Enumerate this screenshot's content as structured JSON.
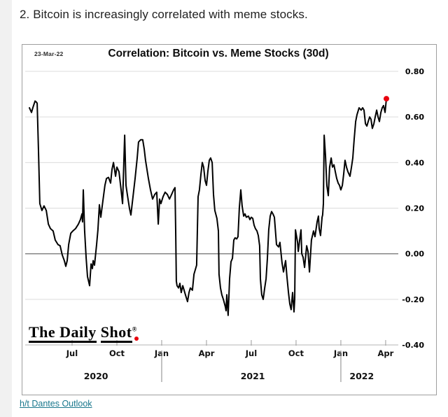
{
  "page": {
    "heading": "2. Bitcoin is increasingly correlated with meme stocks.",
    "credit_link": "h/t Dantes Outlook"
  },
  "chart": {
    "date_stamp": "23-Mar-22",
    "title": "Correlation: Bitcoin vs. Meme Stocks (30d)",
    "logo_text_1": "The Daily",
    "logo_text_2": "Shot",
    "logo_registered": "®",
    "colors": {
      "line": "#000000",
      "endpoint_dot": "#e8000d",
      "grid": "#dcdcdc",
      "zero_line": "#7d7d7d",
      "axis_line": "#b5b5b5",
      "border": "#9e9e9e",
      "link": "#19778c",
      "gutter": "#f1f1f1"
    }
  },
  "chart_data": {
    "type": "line",
    "title": "Correlation: Bitcoin vs. Meme Stocks (30d)",
    "as_of": "23-Mar-22",
    "grid": true,
    "x_unit": "fractional months since 2020-04-01 (m=3 is Jul 2020, m=24 is Apr 2022)",
    "xlim": [
      0,
      24.45
    ],
    "ylim": [
      -0.44,
      0.845
    ],
    "y_ticks": [
      {
        "v": 0.8,
        "label": "0.80"
      },
      {
        "v": 0.6,
        "label": "0.60"
      },
      {
        "v": 0.4,
        "label": "0.40"
      },
      {
        "v": 0.2,
        "label": "0.20"
      },
      {
        "v": 0.0,
        "label": "0.00"
      },
      {
        "v": -0.2,
        "label": "-0.20"
      },
      {
        "v": -0.4,
        "label": "-0.40"
      }
    ],
    "x_ticks": [
      {
        "m": 3,
        "label": "Jul"
      },
      {
        "m": 6,
        "label": "Oct"
      },
      {
        "m": 9,
        "label": "Jan"
      },
      {
        "m": 12,
        "label": "Apr"
      },
      {
        "m": 15,
        "label": "Jul"
      },
      {
        "m": 18,
        "label": "Oct"
      },
      {
        "m": 21,
        "label": "Jan"
      },
      {
        "m": 24,
        "label": "Apr"
      }
    ],
    "year_labels": [
      {
        "m": 4.6,
        "label": "2020"
      },
      {
        "m": 15.1,
        "label": "2021"
      },
      {
        "m": 22.4,
        "label": "2022"
      }
    ],
    "year_separators": [
      9,
      21
    ],
    "last_point_marker": {
      "m": 24.05,
      "v": 0.68,
      "color": "#e8000d"
    },
    "series": [
      {
        "name": "30-day correlation: Bitcoin vs. meme stocks",
        "color": "#000000",
        "points": [
          [
            0.14,
            0.64
          ],
          [
            0.28,
            0.62
          ],
          [
            0.37,
            0.64
          ],
          [
            0.52,
            0.67
          ],
          [
            0.61,
            0.665
          ],
          [
            0.66,
            0.66
          ],
          [
            0.75,
            0.45
          ],
          [
            0.84,
            0.22
          ],
          [
            0.98,
            0.19
          ],
          [
            1.12,
            0.21
          ],
          [
            1.27,
            0.19
          ],
          [
            1.41,
            0.13
          ],
          [
            1.55,
            0.11
          ],
          [
            1.73,
            0.1
          ],
          [
            1.87,
            0.06
          ],
          [
            2.06,
            0.04
          ],
          [
            2.2,
            0.035
          ],
          [
            2.34,
            -0.005
          ],
          [
            2.48,
            -0.03
          ],
          [
            2.58,
            -0.055
          ],
          [
            2.67,
            -0.03
          ],
          [
            2.77,
            0.04
          ],
          [
            2.91,
            0.09
          ],
          [
            3.05,
            0.1
          ],
          [
            3.23,
            0.11
          ],
          [
            3.42,
            0.13
          ],
          [
            3.56,
            0.15
          ],
          [
            3.66,
            0.175
          ],
          [
            3.7,
            0.14
          ],
          [
            3.75,
            0.28
          ],
          [
            3.84,
            0.1
          ],
          [
            3.94,
            -0.02
          ],
          [
            4.03,
            -0.1
          ],
          [
            4.17,
            -0.14
          ],
          [
            4.27,
            -0.045
          ],
          [
            4.36,
            -0.065
          ],
          [
            4.41,
            -0.03
          ],
          [
            4.5,
            -0.05
          ],
          [
            4.64,
            0.04
          ],
          [
            4.73,
            0.105
          ],
          [
            4.83,
            0.215
          ],
          [
            4.92,
            0.16
          ],
          [
            5.06,
            0.23
          ],
          [
            5.2,
            0.3
          ],
          [
            5.3,
            0.33
          ],
          [
            5.44,
            0.335
          ],
          [
            5.58,
            0.31
          ],
          [
            5.67,
            0.37
          ],
          [
            5.77,
            0.4
          ],
          [
            5.91,
            0.34
          ],
          [
            6.0,
            0.38
          ],
          [
            6.14,
            0.36
          ],
          [
            6.28,
            0.28
          ],
          [
            6.38,
            0.22
          ],
          [
            6.52,
            0.52
          ],
          [
            6.61,
            0.3
          ],
          [
            6.7,
            0.26
          ],
          [
            6.84,
            0.2
          ],
          [
            6.94,
            0.17
          ],
          [
            7.08,
            0.25
          ],
          [
            7.22,
            0.33
          ],
          [
            7.36,
            0.42
          ],
          [
            7.45,
            0.49
          ],
          [
            7.59,
            0.5
          ],
          [
            7.73,
            0.5
          ],
          [
            7.83,
            0.46
          ],
          [
            7.92,
            0.41
          ],
          [
            8.11,
            0.33
          ],
          [
            8.25,
            0.28
          ],
          [
            8.39,
            0.24
          ],
          [
            8.53,
            0.26
          ],
          [
            8.67,
            0.27
          ],
          [
            8.77,
            0.13
          ],
          [
            8.86,
            0.24
          ],
          [
            8.95,
            0.22
          ],
          [
            9.09,
            0.25
          ],
          [
            9.23,
            0.27
          ],
          [
            9.38,
            0.26
          ],
          [
            9.52,
            0.24
          ],
          [
            9.66,
            0.26
          ],
          [
            9.8,
            0.28
          ],
          [
            9.89,
            0.29
          ],
          [
            9.94,
            0.1
          ],
          [
            9.98,
            -0.12
          ],
          [
            10.03,
            -0.14
          ],
          [
            10.13,
            -0.15
          ],
          [
            10.22,
            -0.13
          ],
          [
            10.31,
            -0.17
          ],
          [
            10.41,
            -0.14
          ],
          [
            10.5,
            -0.16
          ],
          [
            10.59,
            -0.18
          ],
          [
            10.73,
            -0.21
          ],
          [
            10.83,
            -0.17
          ],
          [
            10.92,
            -0.15
          ],
          [
            11.06,
            -0.16
          ],
          [
            11.16,
            -0.09
          ],
          [
            11.25,
            -0.07
          ],
          [
            11.34,
            -0.05
          ],
          [
            11.44,
            0.25
          ],
          [
            11.53,
            0.28
          ],
          [
            11.63,
            0.35
          ],
          [
            11.72,
            0.4
          ],
          [
            11.81,
            0.38
          ],
          [
            11.91,
            0.32
          ],
          [
            12.0,
            0.3
          ],
          [
            12.09,
            0.36
          ],
          [
            12.19,
            0.41
          ],
          [
            12.28,
            0.42
          ],
          [
            12.38,
            0.4
          ],
          [
            12.47,
            0.26
          ],
          [
            12.56,
            0.19
          ],
          [
            12.7,
            0.155
          ],
          [
            12.8,
            0.1
          ],
          [
            12.84,
            -0.09
          ],
          [
            12.94,
            -0.15
          ],
          [
            13.03,
            -0.18
          ],
          [
            13.13,
            -0.2
          ],
          [
            13.27,
            -0.235
          ],
          [
            13.31,
            -0.25
          ],
          [
            13.36,
            -0.18
          ],
          [
            13.45,
            -0.27
          ],
          [
            13.55,
            -0.11
          ],
          [
            13.64,
            -0.035
          ],
          [
            13.74,
            -0.02
          ],
          [
            13.83,
            0.06
          ],
          [
            13.92,
            0.07
          ],
          [
            14.02,
            0.065
          ],
          [
            14.11,
            0.075
          ],
          [
            14.2,
            0.2
          ],
          [
            14.3,
            0.28
          ],
          [
            14.39,
            0.21
          ],
          [
            14.49,
            0.165
          ],
          [
            14.58,
            0.175
          ],
          [
            14.67,
            0.16
          ],
          [
            14.81,
            0.165
          ],
          [
            14.91,
            0.15
          ],
          [
            15.0,
            0.16
          ],
          [
            15.1,
            0.155
          ],
          [
            15.19,
            0.125
          ],
          [
            15.28,
            0.11
          ],
          [
            15.38,
            0.1
          ],
          [
            15.47,
            0.08
          ],
          [
            15.56,
            0.035
          ],
          [
            15.61,
            -0.11
          ],
          [
            15.7,
            -0.18
          ],
          [
            15.8,
            -0.2
          ],
          [
            15.89,
            -0.155
          ],
          [
            15.99,
            -0.11
          ],
          [
            16.08,
            -0.02
          ],
          [
            16.17,
            0.105
          ],
          [
            16.27,
            0.165
          ],
          [
            16.36,
            0.185
          ],
          [
            16.45,
            0.175
          ],
          [
            16.55,
            0.16
          ],
          [
            16.69,
            0.04
          ],
          [
            16.83,
            0.03
          ],
          [
            16.92,
            0.05
          ],
          [
            17.06,
            -0.04
          ],
          [
            17.16,
            -0.08
          ],
          [
            17.3,
            -0.03
          ],
          [
            17.39,
            -0.1
          ],
          [
            17.49,
            -0.17
          ],
          [
            17.58,
            -0.22
          ],
          [
            17.67,
            -0.245
          ],
          [
            17.77,
            -0.17
          ],
          [
            17.86,
            -0.255
          ],
          [
            17.91,
            -0.2
          ],
          [
            17.96,
            0.105
          ],
          [
            18.1,
            0.05
          ],
          [
            18.15,
            0.01
          ],
          [
            18.24,
            0.06
          ],
          [
            18.33,
            0.105
          ],
          [
            18.38,
            0.0
          ],
          [
            18.47,
            -0.015
          ],
          [
            18.57,
            -0.06
          ],
          [
            18.71,
            0.035
          ],
          [
            18.8,
            0.01
          ],
          [
            18.9,
            -0.08
          ],
          [
            19.03,
            0.06
          ],
          [
            19.17,
            0.1
          ],
          [
            19.27,
            0.075
          ],
          [
            19.41,
            0.14
          ],
          [
            19.5,
            0.165
          ],
          [
            19.55,
            0.11
          ],
          [
            19.64,
            0.08
          ],
          [
            19.74,
            0.16
          ],
          [
            19.78,
            0.17
          ],
          [
            19.83,
            0.22
          ],
          [
            19.88,
            0.52
          ],
          [
            19.97,
            0.43
          ],
          [
            20.06,
            0.3
          ],
          [
            20.16,
            0.255
          ],
          [
            20.25,
            0.38
          ],
          [
            20.35,
            0.42
          ],
          [
            20.44,
            0.38
          ],
          [
            20.54,
            0.39
          ],
          [
            20.63,
            0.36
          ],
          [
            20.72,
            0.33
          ],
          [
            20.82,
            0.31
          ],
          [
            20.91,
            0.3
          ],
          [
            21.0,
            0.28
          ],
          [
            21.1,
            0.3
          ],
          [
            21.19,
            0.35
          ],
          [
            21.28,
            0.41
          ],
          [
            21.38,
            0.38
          ],
          [
            21.47,
            0.36
          ],
          [
            21.61,
            0.34
          ],
          [
            21.71,
            0.38
          ],
          [
            21.8,
            0.42
          ],
          [
            21.89,
            0.5
          ],
          [
            21.99,
            0.58
          ],
          [
            22.08,
            0.61
          ],
          [
            22.22,
            0.64
          ],
          [
            22.36,
            0.63
          ],
          [
            22.46,
            0.64
          ],
          [
            22.55,
            0.63
          ],
          [
            22.65,
            0.57
          ],
          [
            22.74,
            0.56
          ],
          [
            22.83,
            0.58
          ],
          [
            22.93,
            0.6
          ],
          [
            23.02,
            0.59
          ],
          [
            23.11,
            0.55
          ],
          [
            23.21,
            0.57
          ],
          [
            23.3,
            0.6
          ],
          [
            23.4,
            0.63
          ],
          [
            23.49,
            0.6
          ],
          [
            23.58,
            0.58
          ],
          [
            23.68,
            0.62
          ],
          [
            23.77,
            0.64
          ],
          [
            23.86,
            0.65
          ],
          [
            23.96,
            0.62
          ],
          [
            24.05,
            0.68
          ]
        ]
      }
    ]
  }
}
